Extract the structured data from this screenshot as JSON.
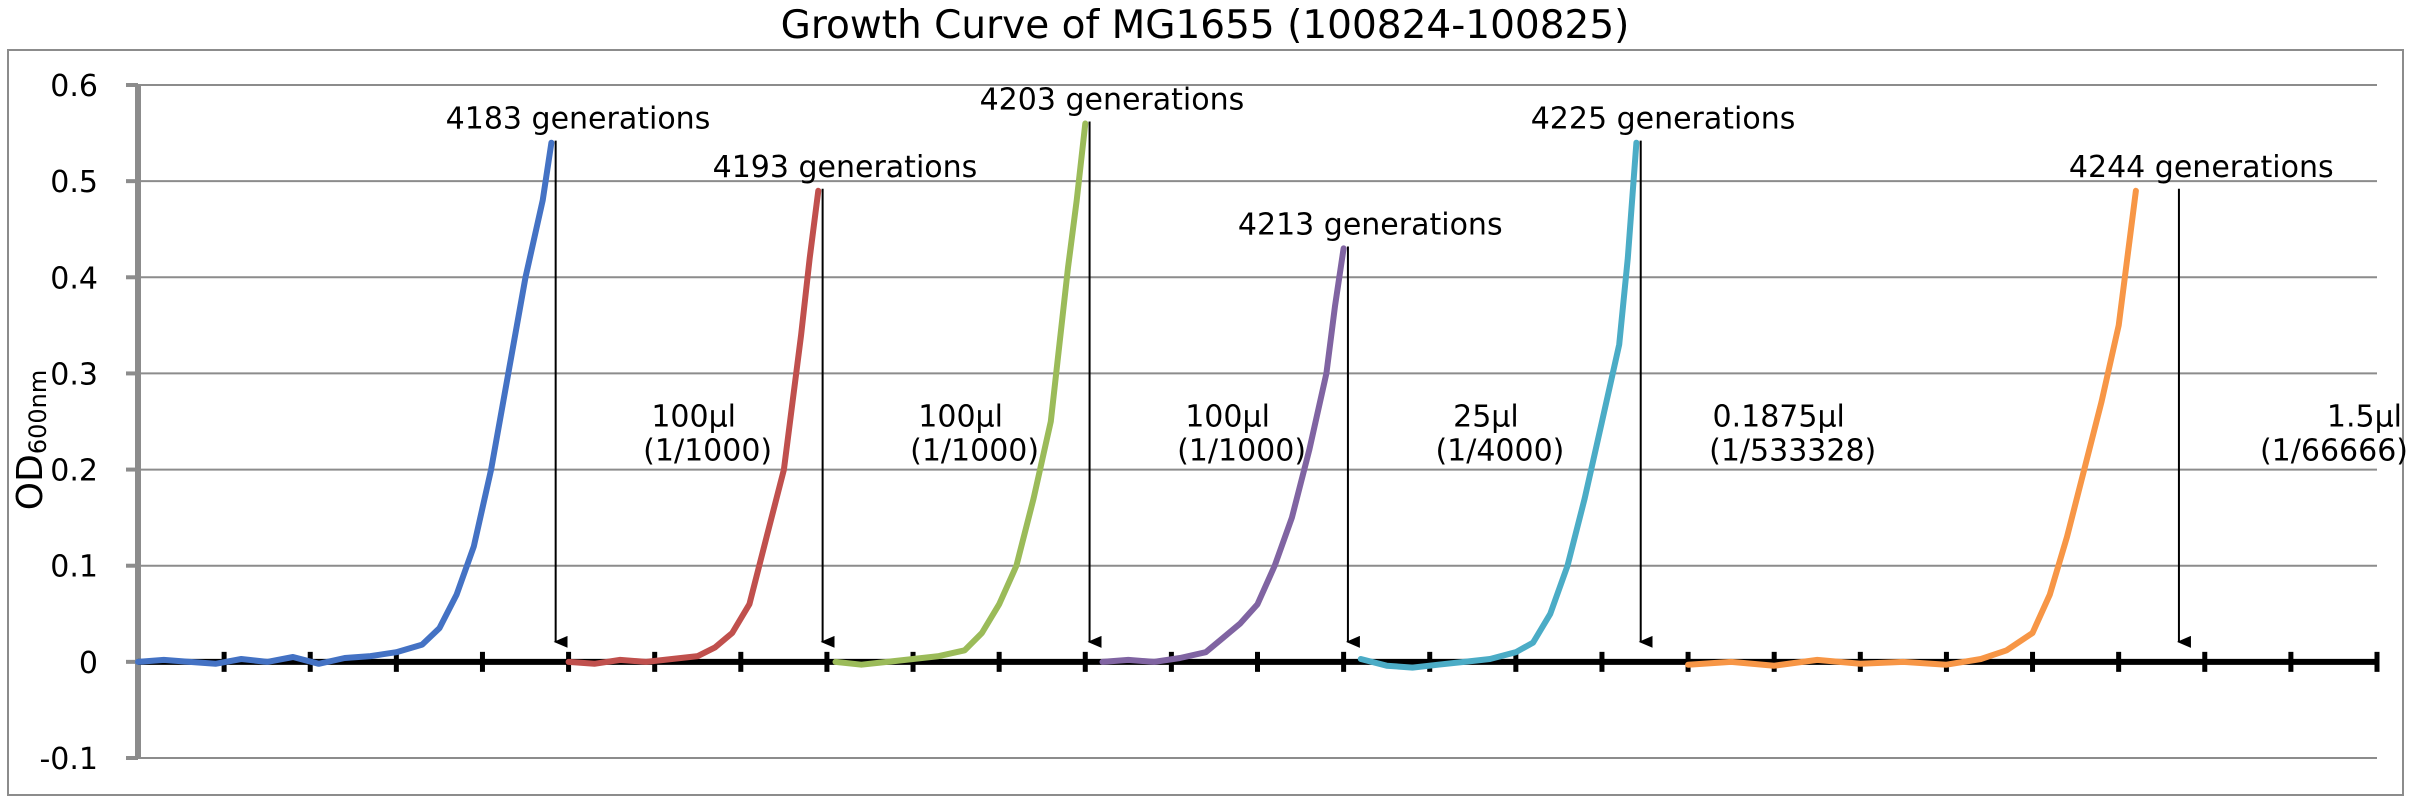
{
  "chart_data": {
    "type": "line",
    "title": "Growth Curve of MG1655 (100824-100825)",
    "ylabel": {
      "main": "OD",
      "sub": "600nm"
    },
    "xlabel": "",
    "ylim": [
      -0.1,
      0.6
    ],
    "yticks": [
      -0.1,
      0,
      0.1,
      0.2,
      0.3,
      0.4,
      0.5,
      0.6
    ],
    "ytick_labels": [
      "-0.1",
      "0",
      "0.1",
      "0.2",
      "0.3",
      "0.4",
      "0.5",
      "0.6"
    ],
    "xlim": [
      0,
      260
    ],
    "x_tick_step": 10,
    "grid": true,
    "legend": "none",
    "series": [
      {
        "color": "#4472C4",
        "peak": 0.54,
        "points": [
          [
            0,
            0
          ],
          [
            3,
            0.002
          ],
          [
            6,
            0
          ],
          [
            9,
            -0.002
          ],
          [
            12,
            0.003
          ],
          [
            15,
            0
          ],
          [
            18,
            0.005
          ],
          [
            21,
            -0.002
          ],
          [
            24,
            0.004
          ],
          [
            27,
            0.006
          ],
          [
            30,
            0.01
          ],
          [
            33,
            0.018
          ],
          [
            35,
            0.035
          ],
          [
            37,
            0.07
          ],
          [
            39,
            0.12
          ],
          [
            41,
            0.2
          ],
          [
            43,
            0.3
          ],
          [
            45,
            0.4
          ],
          [
            47,
            0.48
          ],
          [
            48,
            0.54
          ]
        ]
      },
      {
        "color": "#C0504D",
        "peak": 0.49,
        "points": [
          [
            50,
            0
          ],
          [
            53,
            -0.002
          ],
          [
            56,
            0.002
          ],
          [
            59,
            0
          ],
          [
            62,
            0.003
          ],
          [
            65,
            0.006
          ],
          [
            67,
            0.015
          ],
          [
            69,
            0.03
          ],
          [
            71,
            0.06
          ],
          [
            73,
            0.13
          ],
          [
            75,
            0.2
          ],
          [
            76,
            0.27
          ],
          [
            77,
            0.34
          ],
          [
            78,
            0.42
          ],
          [
            79,
            0.49
          ]
        ]
      },
      {
        "color": "#9BBB59",
        "peak": 0.56,
        "points": [
          [
            81,
            0
          ],
          [
            84,
            -0.003
          ],
          [
            87,
            0
          ],
          [
            90,
            0.003
          ],
          [
            93,
            0.006
          ],
          [
            96,
            0.012
          ],
          [
            98,
            0.03
          ],
          [
            100,
            0.06
          ],
          [
            102,
            0.1
          ],
          [
            104,
            0.17
          ],
          [
            106,
            0.25
          ],
          [
            107,
            0.33
          ],
          [
            108,
            0.41
          ],
          [
            109,
            0.48
          ],
          [
            110,
            0.56
          ]
        ]
      },
      {
        "color": "#8064A2",
        "peak": 0.43,
        "points": [
          [
            112,
            0
          ],
          [
            115,
            0.002
          ],
          [
            118,
            0
          ],
          [
            121,
            0.004
          ],
          [
            124,
            0.01
          ],
          [
            126,
            0.025
          ],
          [
            128,
            0.04
          ],
          [
            130,
            0.06
          ],
          [
            132,
            0.1
          ],
          [
            134,
            0.15
          ],
          [
            136,
            0.22
          ],
          [
            138,
            0.3
          ],
          [
            139,
            0.37
          ],
          [
            140,
            0.43
          ]
        ]
      },
      {
        "color": "#4BACC6",
        "peak": 0.54,
        "points": [
          [
            142,
            0.003
          ],
          [
            145,
            -0.004
          ],
          [
            148,
            -0.006
          ],
          [
            151,
            -0.003
          ],
          [
            154,
            0
          ],
          [
            157,
            0.003
          ],
          [
            160,
            0.01
          ],
          [
            162,
            0.02
          ],
          [
            164,
            0.05
          ],
          [
            166,
            0.1
          ],
          [
            168,
            0.17
          ],
          [
            170,
            0.25
          ],
          [
            172,
            0.33
          ],
          [
            173,
            0.42
          ],
          [
            174,
            0.54
          ]
        ]
      },
      {
        "color": "#F79646",
        "peak": 0.49,
        "points": [
          [
            180,
            -0.003
          ],
          [
            185,
            0
          ],
          [
            190,
            -0.004
          ],
          [
            195,
            0.002
          ],
          [
            200,
            -0.002
          ],
          [
            205,
            0
          ],
          [
            210,
            -0.003
          ],
          [
            214,
            0.003
          ],
          [
            217,
            0.012
          ],
          [
            220,
            0.03
          ],
          [
            222,
            0.07
          ],
          [
            224,
            0.13
          ],
          [
            226,
            0.2
          ],
          [
            228,
            0.27
          ],
          [
            230,
            0.35
          ],
          [
            231,
            0.42
          ],
          [
            232,
            0.49
          ]
        ]
      }
    ],
    "annotations": [
      {
        "generation_label": "4183 generations",
        "x": 48.5,
        "top": 0.54,
        "volume": "100μl",
        "dilution": "(1/1000)"
      },
      {
        "generation_label": "4193 generations",
        "x": 79.5,
        "top": 0.49,
        "volume": "100μl",
        "dilution": "(1/1000)"
      },
      {
        "generation_label": "4203 generations",
        "x": 110.5,
        "top": 0.56,
        "volume": "100μl",
        "dilution": "(1/1000)"
      },
      {
        "generation_label": "4213 generations",
        "x": 140.5,
        "top": 0.43,
        "volume": "25μl",
        "dilution": "(1/4000)"
      },
      {
        "generation_label": "4225 generations",
        "x": 174.5,
        "top": 0.54,
        "volume": "0.1875μl",
        "dilution": "(1/533328)"
      },
      {
        "generation_label": "4244 generations",
        "x": 237.0,
        "top": 0.49,
        "volume": "1.5μl",
        "dilution": "(1/66666)"
      }
    ]
  }
}
